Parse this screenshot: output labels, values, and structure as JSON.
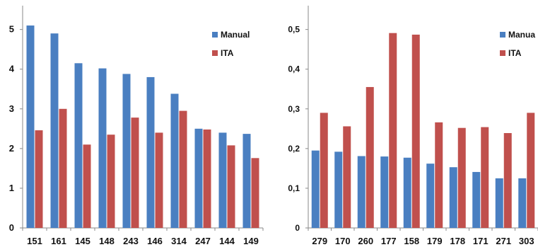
{
  "colors": {
    "manual": "#4a7fc1",
    "ita": "#c0504d",
    "axis": "#8a8a8a"
  },
  "chart_data": [
    {
      "type": "bar",
      "categories": [
        "151",
        "161",
        "145",
        "148",
        "243",
        "146",
        "314",
        "247",
        "144",
        "149"
      ],
      "series": [
        {
          "name": "Manual",
          "values": [
            5.1,
            4.9,
            4.15,
            4.02,
            3.88,
            3.8,
            3.38,
            2.5,
            2.4,
            2.37
          ]
        },
        {
          "name": "ITA",
          "values": [
            2.46,
            3.0,
            2.1,
            2.35,
            2.78,
            2.4,
            2.95,
            2.48,
            2.08,
            1.76
          ]
        }
      ],
      "ylim": [
        0,
        5.6
      ],
      "yticks": [
        "0",
        "1",
        "2",
        "3",
        "4",
        "5"
      ],
      "grid": false,
      "legend": "top-right"
    },
    {
      "type": "bar",
      "categories": [
        "279",
        "170",
        "260",
        "177",
        "158",
        "179",
        "178",
        "171",
        "271",
        "303"
      ],
      "series": [
        {
          "name": "Manua",
          "values": [
            0.195,
            0.192,
            0.181,
            0.18,
            0.177,
            0.162,
            0.153,
            0.141,
            0.125,
            0.125
          ]
        },
        {
          "name": "ITA",
          "values": [
            0.29,
            0.256,
            0.355,
            0.491,
            0.487,
            0.266,
            0.252,
            0.254,
            0.239,
            0.29
          ]
        }
      ],
      "ylim": [
        0,
        0.56
      ],
      "yticks": [
        "0",
        "0,1",
        "0,2",
        "0,3",
        "0,4",
        "0,5"
      ],
      "grid": false,
      "legend": "top-right"
    }
  ]
}
